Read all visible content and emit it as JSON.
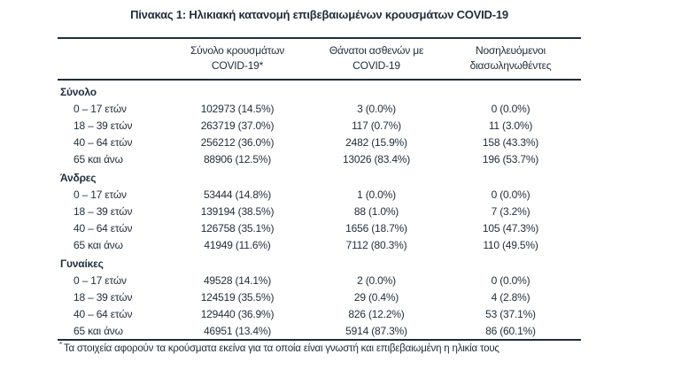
{
  "title": "Πίνακας 1: Ηλικιακή κατανομή επιβεβαιωμένων κρουσμάτων COVID-19",
  "colors": {
    "text": "#1f2d3a",
    "rule": "#1f2d3a",
    "background": "#ffffff"
  },
  "table": {
    "columns": [
      {
        "line1": "Σύνολο κρουσμάτων",
        "line2": "COVID-19*"
      },
      {
        "line1": "Θάνατοι ασθενών με",
        "line2": "COVID-19"
      },
      {
        "line1": "Νοσηλευόμενοι",
        "line2": "διασωληνωθέντες"
      }
    ],
    "sections": [
      {
        "label": "Σύνολο",
        "rows": [
          {
            "label": "0 – 17 ετών",
            "cases": "102973 (14.5%)",
            "deaths": "3 (0.0%)",
            "intubated": "0 (0.0%)"
          },
          {
            "label": "18 – 39 ετών",
            "cases": "263719 (37.0%)",
            "deaths": "117 (0.7%)",
            "intubated": "11 (3.0%)"
          },
          {
            "label": "40 – 64 ετών",
            "cases": "256212 (36.0%)",
            "deaths": "2482 (15.9%)",
            "intubated": "158 (43.3%)"
          },
          {
            "label": "65 και άνω",
            "cases": "88906 (12.5%)",
            "deaths": "13026 (83.4%)",
            "intubated": "196 (53.7%)"
          }
        ]
      },
      {
        "label": "Άνδρες",
        "rows": [
          {
            "label": "0 – 17 ετών",
            "cases": "53444 (14.8%)",
            "deaths": "1 (0.0%)",
            "intubated": "0 (0.0%)"
          },
          {
            "label": "18 – 39 ετών",
            "cases": "139194 (38.5%)",
            "deaths": "88 (1.0%)",
            "intubated": "7 (3.2%)"
          },
          {
            "label": "40 – 64 ετών",
            "cases": "126758 (35.1%)",
            "deaths": "1656 (18.7%)",
            "intubated": "105 (47.3%)"
          },
          {
            "label": "65 και άνω",
            "cases": "41949 (11.6%)",
            "deaths": "7112 (80.3%)",
            "intubated": "110 (49.5%)"
          }
        ]
      },
      {
        "label": "Γυναίκες",
        "rows": [
          {
            "label": "0 – 17 ετών",
            "cases": "49528 (14.1%)",
            "deaths": "2 (0.0%)",
            "intubated": "0 (0.0%)"
          },
          {
            "label": "18 – 39 ετών",
            "cases": "124519 (35.5%)",
            "deaths": "29 (0.4%)",
            "intubated": "4 (2.8%)"
          },
          {
            "label": "40 – 64 ετών",
            "cases": "129440 (36.9%)",
            "deaths": "826 (12.2%)",
            "intubated": "53 (37.1%)"
          },
          {
            "label": "65 και άνω",
            "cases": "46951 (13.4%)",
            "deaths": "5914 (87.3%)",
            "intubated": "86 (60.1%)"
          }
        ]
      }
    ],
    "footnote_marker": "*",
    "footnote": "Τα στοιχεία αφορούν τα κρούσματα εκείνα για τα οποία είναι γνωστή και επιβεβαιωμένη η ηλικία τους"
  }
}
